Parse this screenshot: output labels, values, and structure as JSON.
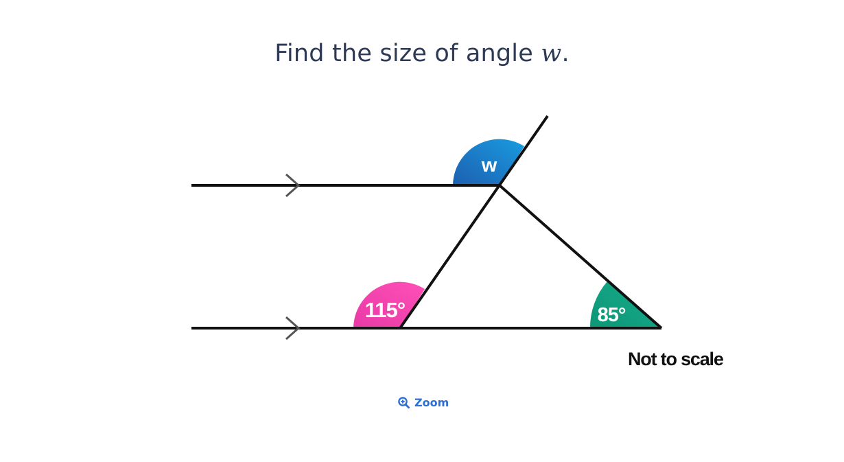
{
  "question": {
    "prefix": "Find the size of angle ",
    "variable": "w",
    "suffix": "."
  },
  "diagram": {
    "angle_w_label": "w",
    "angle_115_label": "115°",
    "angle_85_label": "85°",
    "note": "Not to scale",
    "colors": {
      "angle_w": "#1a73c9",
      "angle_115": "#ff3fb0",
      "angle_85": "#0fa082",
      "lines": "#111111",
      "arrows": "#555555"
    }
  },
  "zoom": {
    "label": "Zoom",
    "icon": "zoom-in-icon"
  }
}
